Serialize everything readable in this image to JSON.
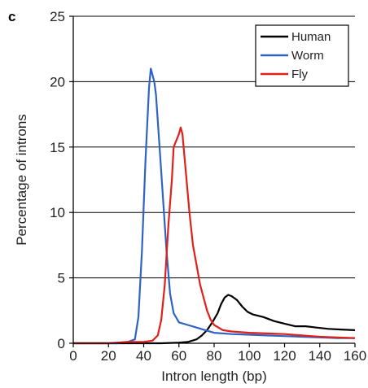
{
  "panel_label": "c",
  "chart_data": {
    "type": "line",
    "xlabel": "Intron length (bp)",
    "ylabel": "Percentage of introns",
    "xlim": [
      0,
      160
    ],
    "ylim": [
      0,
      25
    ],
    "x_ticks": [
      0,
      20,
      40,
      60,
      80,
      100,
      120,
      140,
      160
    ],
    "y_ticks": [
      0,
      5,
      10,
      15,
      20,
      25
    ],
    "grid": "horizontal",
    "legend_position": "top-right",
    "series": [
      {
        "name": "Human",
        "color": "#000000",
        "points": [
          [
            0,
            0
          ],
          [
            20,
            0
          ],
          [
            30,
            0
          ],
          [
            40,
            0
          ],
          [
            50,
            0
          ],
          [
            60,
            0.05
          ],
          [
            65,
            0.1
          ],
          [
            70,
            0.3
          ],
          [
            73,
            0.6
          ],
          [
            76,
            1.0
          ],
          [
            79,
            1.6
          ],
          [
            82,
            2.3
          ],
          [
            84,
            3.0
          ],
          [
            86,
            3.5
          ],
          [
            88,
            3.7
          ],
          [
            90,
            3.6
          ],
          [
            93,
            3.3
          ],
          [
            96,
            2.8
          ],
          [
            99,
            2.4
          ],
          [
            102,
            2.2
          ],
          [
            108,
            2.0
          ],
          [
            114,
            1.7
          ],
          [
            120,
            1.5
          ],
          [
            126,
            1.3
          ],
          [
            132,
            1.3
          ],
          [
            138,
            1.2
          ],
          [
            145,
            1.1
          ],
          [
            152,
            1.05
          ],
          [
            160,
            1.0
          ]
        ]
      },
      {
        "name": "Worm",
        "color": "#2f62c4",
        "points": [
          [
            0,
            0
          ],
          [
            20,
            0
          ],
          [
            25,
            0
          ],
          [
            30,
            0.05
          ],
          [
            35,
            0.3
          ],
          [
            37,
            2.0
          ],
          [
            39,
            7.0
          ],
          [
            41,
            14.0
          ],
          [
            43,
            19.5
          ],
          [
            44,
            21.0
          ],
          [
            46,
            20.0
          ],
          [
            47,
            19.0
          ],
          [
            49,
            15.0
          ],
          [
            51,
            11.0
          ],
          [
            53,
            7.0
          ],
          [
            55,
            3.8
          ],
          [
            57,
            2.3
          ],
          [
            60,
            1.6
          ],
          [
            65,
            1.4
          ],
          [
            70,
            1.2
          ],
          [
            75,
            1.0
          ],
          [
            80,
            0.8
          ],
          [
            90,
            0.7
          ],
          [
            100,
            0.65
          ],
          [
            110,
            0.6
          ],
          [
            120,
            0.55
          ],
          [
            130,
            0.5
          ],
          [
            140,
            0.45
          ],
          [
            150,
            0.4
          ],
          [
            160,
            0.4
          ]
        ]
      },
      {
        "name": "Fly",
        "color": "#e0201a",
        "points": [
          [
            0,
            0
          ],
          [
            20,
            0
          ],
          [
            25,
            0.05
          ],
          [
            30,
            0.1
          ],
          [
            40,
            0.1
          ],
          [
            45,
            0.2
          ],
          [
            48,
            0.6
          ],
          [
            50,
            1.8
          ],
          [
            52,
            4.5
          ],
          [
            54,
            9.0
          ],
          [
            56,
            12.5
          ],
          [
            57,
            15.0
          ],
          [
            60,
            16.0
          ],
          [
            61,
            16.5
          ],
          [
            62,
            16.0
          ],
          [
            64,
            13.0
          ],
          [
            66,
            10.0
          ],
          [
            68,
            7.5
          ],
          [
            70,
            6.0
          ],
          [
            72,
            4.5
          ],
          [
            74,
            3.5
          ],
          [
            76,
            2.5
          ],
          [
            78,
            1.8
          ],
          [
            80,
            1.4
          ],
          [
            85,
            1.0
          ],
          [
            90,
            0.9
          ],
          [
            100,
            0.8
          ],
          [
            110,
            0.75
          ],
          [
            120,
            0.7
          ],
          [
            130,
            0.6
          ],
          [
            140,
            0.5
          ],
          [
            150,
            0.45
          ],
          [
            160,
            0.4
          ]
        ]
      }
    ]
  }
}
